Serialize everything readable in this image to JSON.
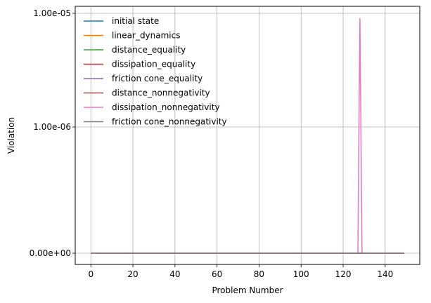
{
  "chart_data": {
    "type": "line",
    "xlabel": "Problem Number",
    "ylabel": "Violation",
    "x_range": [
      0,
      149
    ],
    "xlim": [
      -7.45,
      156.45
    ],
    "x_ticks": [
      0,
      20,
      40,
      60,
      80,
      100,
      120,
      140
    ],
    "x_tick_labels": [
      "0",
      "20",
      "40",
      "60",
      "80",
      "100",
      "120",
      "140"
    ],
    "y_scale": "symlog",
    "y_ticks": [
      0,
      1e-06,
      1e-05
    ],
    "y_tick_labels": [
      "0.00e+00",
      "1.00e-06",
      "1.00e-05"
    ],
    "grid": true,
    "legend_position": "top-left",
    "series": [
      {
        "name": "initial state",
        "color": "#1f77b4",
        "constant": 0
      },
      {
        "name": "linear_dynamics",
        "color": "#ff7f0e",
        "constant": 0
      },
      {
        "name": "distance_equality",
        "color": "#2ca02c",
        "constant": 0
      },
      {
        "name": "dissipation_equality",
        "color": "#d62728",
        "constant": 0
      },
      {
        "name": "friction cone_equality",
        "color": "#9467bd",
        "constant": 0
      },
      {
        "name": "distance_nonnegativity",
        "color": "#8c564b",
        "constant": 0
      },
      {
        "name": "dissipation_nonnegativity",
        "color": "#e377c2",
        "constant": 0,
        "spikes": [
          {
            "x": 128,
            "y": 9e-06
          }
        ]
      },
      {
        "name": "friction cone_nonnegativity",
        "color": "#7f7f7f",
        "constant": 0
      }
    ]
  }
}
